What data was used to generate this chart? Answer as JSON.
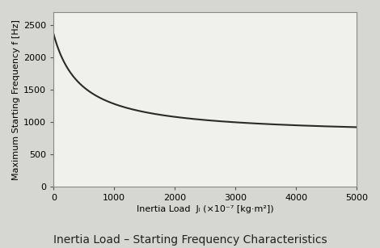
{
  "title": "Inertia Load – Starting Frequency Characteristics",
  "xlabel": "Inertia Load  Jₗ (×10⁻⁷ [kg·m²])",
  "ylabel": "Maximum Starting Frequency f [Hz]",
  "xlim": [
    0,
    5000
  ],
  "ylim": [
    0,
    2700
  ],
  "xticks": [
    0,
    1000,
    2000,
    3000,
    4000,
    5000
  ],
  "yticks": [
    0,
    500,
    1000,
    1500,
    2000,
    2500
  ],
  "plot_bg_color": "#f0f0ec",
  "fig_bg_color": "#d6d6d2",
  "line_color": "#2a2a2a",
  "line_width": 1.5,
  "curve_start_x": 0,
  "curve_end_x": 5000,
  "curve_a": 1570,
  "curve_b": 790,
  "curve_k": 0.0022,
  "title_fontsize": 10,
  "label_fontsize": 8,
  "tick_fontsize": 8
}
